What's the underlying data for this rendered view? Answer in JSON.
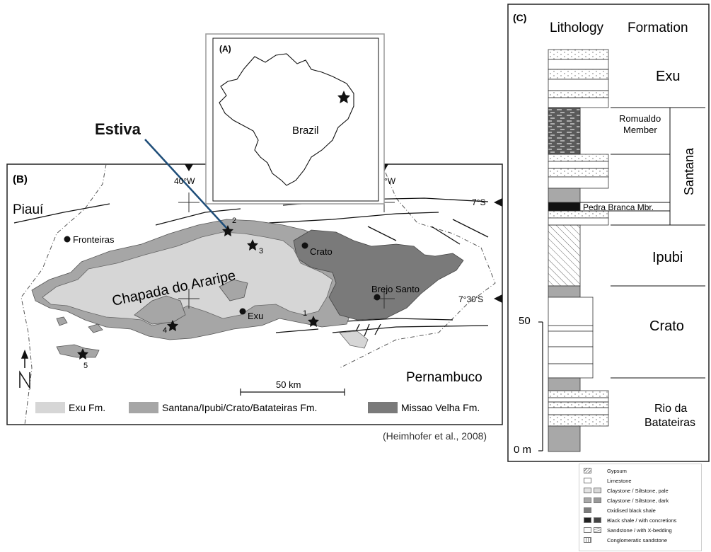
{
  "annotation": {
    "site_label": "Estiva",
    "citation": "(Heimhofer et al., 2008)"
  },
  "panel_a": {
    "label": "(A)",
    "country": "Brazil"
  },
  "panel_b": {
    "label": "(B)",
    "states": [
      "Piauí",
      "Pernambuco"
    ],
    "basin": "Chapada do Araripe",
    "towns": [
      "Fronteiras",
      "Crato",
      "Exu",
      "Brejo Santo"
    ],
    "sites": [
      "1",
      "2",
      "3",
      "4",
      "5"
    ],
    "coords": {
      "lon_w": "40°W",
      "lon_e": "°W",
      "lat_n": "7°S",
      "lat_s": "7°30'S"
    },
    "scale": "50 km",
    "legend": [
      "Exu Fm.",
      "Santana/Ipubi/Crato/Batateiras Fm.",
      "Missao Velha Fm."
    ]
  },
  "panel_c": {
    "label": "(C)",
    "col_lithology": "Lithology",
    "col_formation": "Formation",
    "formations": {
      "exu": "Exu",
      "romualdo": [
        "Romualdo",
        "Member"
      ],
      "santana": "Santana",
      "pedra": "Pedra Branca Mbr.",
      "ipubi": "Ipubi",
      "crato": "Crato",
      "rio": [
        "Rio da",
        "Batateiras"
      ]
    },
    "scale_marks": [
      "50",
      "0 m"
    ]
  },
  "lithology_legend": [
    "Gypsum",
    "Limestone",
    "Claystone / Siltstone, pale",
    "Claystone / Siltstone, dark",
    "Oxidised black shale",
    "Black shale  / with concretions",
    "Sandstone / with X-bedding",
    "Conglomeratic sandstone"
  ],
  "colors": {
    "exu_fm": "#d6d6d6",
    "santana_fm": "#a6a6a6",
    "missao_fm": "#7a7a7a",
    "line": "#1f4e79"
  }
}
